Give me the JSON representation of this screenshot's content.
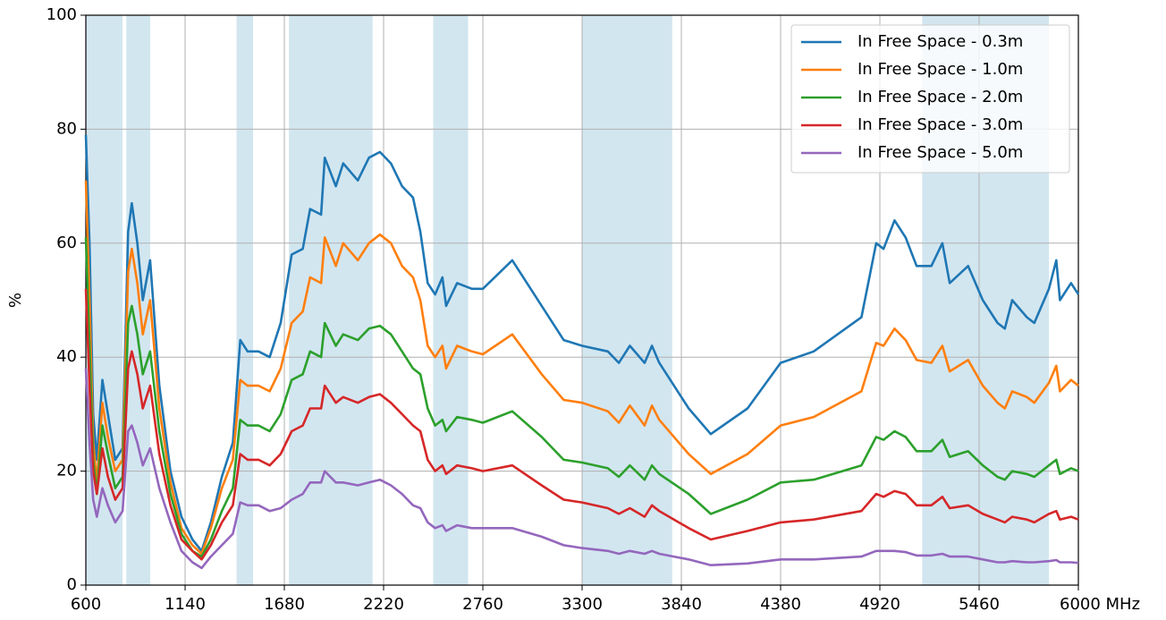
{
  "chart_data": {
    "type": "line",
    "y_label": "%",
    "x": [
      600,
      620,
      640,
      660,
      690,
      720,
      760,
      800,
      830,
      850,
      880,
      910,
      950,
      1000,
      1060,
      1120,
      1180,
      1230,
      1280,
      1340,
      1400,
      1440,
      1480,
      1540,
      1600,
      1660,
      1720,
      1780,
      1820,
      1880,
      1900,
      1960,
      2000,
      2080,
      2140,
      2200,
      2260,
      2320,
      2380,
      2420,
      2460,
      2500,
      2540,
      2560,
      2620,
      2700,
      2760,
      2920,
      3080,
      3200,
      3300,
      3440,
      3500,
      3560,
      3640,
      3680,
      3720,
      3880,
      4000,
      4200,
      4380,
      4560,
      4820,
      4900,
      4940,
      5000,
      5060,
      5120,
      5200,
      5260,
      5300,
      5400,
      5480,
      5560,
      5600,
      5640,
      5720,
      5760,
      5840,
      5880,
      5900,
      5960,
      6000
    ],
    "series": [
      {
        "name": "In Free Space - 0.3m",
        "color": "#1f77b4",
        "values": [
          79,
          60,
          30,
          22,
          36,
          30,
          22,
          24,
          62,
          67,
          60,
          50,
          57,
          35,
          20,
          12,
          8,
          6,
          11,
          19,
          25,
          43,
          41,
          41,
          40,
          46,
          58,
          59,
          66,
          65,
          75,
          70,
          74,
          71,
          75,
          76,
          74,
          70,
          68,
          62,
          53,
          51,
          54,
          49,
          53,
          52,
          52,
          57,
          49,
          43,
          42,
          41,
          39,
          42,
          39,
          42,
          39,
          31,
          26.5,
          31,
          39,
          41,
          47,
          60,
          59,
          64,
          61,
          56,
          56,
          60,
          53,
          56,
          50,
          46,
          45,
          50,
          47,
          46,
          52,
          57,
          50,
          53,
          51
        ]
      },
      {
        "name": "In Free Space - 1.0m",
        "color": "#ff7f0e",
        "values": [
          71,
          50,
          25,
          18,
          32,
          26,
          20,
          22,
          55,
          59,
          53,
          44,
          50,
          31,
          18,
          10,
          7,
          5.5,
          10,
          17,
          22,
          36,
          35,
          35,
          34,
          38,
          46,
          48,
          54,
          53,
          61,
          56,
          60,
          57,
          60,
          61.5,
          60,
          56,
          54,
          50,
          42,
          40,
          42,
          38,
          42,
          41,
          40.5,
          44,
          37,
          32.5,
          32,
          30.5,
          28.5,
          31.5,
          28,
          31.5,
          29,
          23,
          19.5,
          23,
          28,
          29.5,
          34,
          42.5,
          42,
          45,
          43,
          39.5,
          39,
          42,
          37.5,
          39.5,
          35,
          32,
          31,
          34,
          33,
          32,
          35.5,
          38.5,
          34,
          36,
          35
        ]
      },
      {
        "name": "In Free Space - 2.0m",
        "color": "#2ca02c",
        "values": [
          61,
          42,
          22,
          16,
          28,
          23,
          17,
          19,
          46,
          49,
          44,
          37,
          41,
          27,
          16,
          9,
          6,
          5,
          8,
          13,
          17,
          29,
          28,
          28,
          27,
          30,
          36,
          37,
          41,
          40,
          46,
          42,
          44,
          43,
          45,
          45.5,
          44,
          41,
          38,
          37,
          31,
          28,
          29,
          27,
          29.5,
          29,
          28.5,
          30.5,
          26,
          22,
          21.5,
          20.5,
          19,
          21,
          18.5,
          21,
          19.5,
          16,
          12.5,
          15,
          18,
          18.5,
          21,
          26,
          25.5,
          27,
          26,
          23.5,
          23.5,
          25.5,
          22.5,
          23.5,
          21,
          19,
          18.5,
          20,
          19.5,
          19,
          21,
          22,
          19.5,
          20.5,
          20
        ]
      },
      {
        "name": "In Free Space - 3.0m",
        "color": "#d62728",
        "values": [
          52,
          35,
          20,
          16,
          24,
          19,
          15,
          17,
          38,
          41,
          37,
          31,
          35,
          23,
          14,
          8,
          6,
          4.5,
          7,
          11,
          14,
          23,
          22,
          22,
          21,
          23,
          27,
          28,
          31,
          31,
          35,
          32,
          33,
          32,
          33,
          33.5,
          32,
          30,
          28,
          27,
          22,
          20,
          21,
          19.5,
          21,
          20.5,
          20,
          21,
          17.5,
          15,
          14.5,
          13.5,
          12.5,
          13.5,
          12,
          14,
          13,
          10,
          8,
          9.5,
          11,
          11.5,
          13,
          16,
          15.5,
          16.5,
          16,
          14,
          14,
          15.5,
          13.5,
          14,
          12.5,
          11.5,
          11,
          12,
          11.5,
          11,
          12.5,
          13,
          11.5,
          12,
          11.5
        ]
      },
      {
        "name": "In Free Space - 5.0m",
        "color": "#9467bd",
        "values": [
          38,
          25,
          15,
          12,
          17,
          14,
          11,
          13,
          27,
          28,
          25,
          21,
          24,
          17,
          11,
          6,
          4,
          3,
          5,
          7,
          9,
          14.5,
          14,
          14,
          13,
          13.5,
          15,
          16,
          18,
          18,
          20,
          18,
          18,
          17.5,
          18,
          18.5,
          17.5,
          16,
          14,
          13.5,
          11,
          10,
          10.5,
          9.5,
          10.5,
          10,
          10,
          10,
          8.5,
          7,
          6.5,
          6,
          5.5,
          6,
          5.5,
          6,
          5.5,
          4.5,
          3.5,
          3.8,
          4.5,
          4.5,
          5,
          6,
          6,
          6,
          5.8,
          5.2,
          5.2,
          5.5,
          5,
          5,
          4.5,
          4,
          4,
          4.2,
          4,
          4,
          4.2,
          4.4,
          4,
          4,
          3.9
        ]
      }
    ],
    "shaded_ranges": [
      [
        600,
        800
      ],
      [
        820,
        950
      ],
      [
        1420,
        1510
      ],
      [
        1705,
        2160
      ],
      [
        2490,
        2680
      ],
      [
        3300,
        3790
      ],
      [
        5150,
        5840
      ]
    ],
    "shade_color": "#d2e6f0",
    "xlim": [
      600,
      6000
    ],
    "xticks": [
      600,
      1140,
      1680,
      2220,
      2760,
      3300,
      3840,
      4380,
      4920,
      5460,
      {
        "value": 6000,
        "label": "6000 MHz"
      }
    ],
    "ylim": [
      0,
      100
    ],
    "yticks": [
      0,
      20,
      40,
      60,
      80,
      100
    ],
    "grid": true,
    "legend": "upper right"
  }
}
